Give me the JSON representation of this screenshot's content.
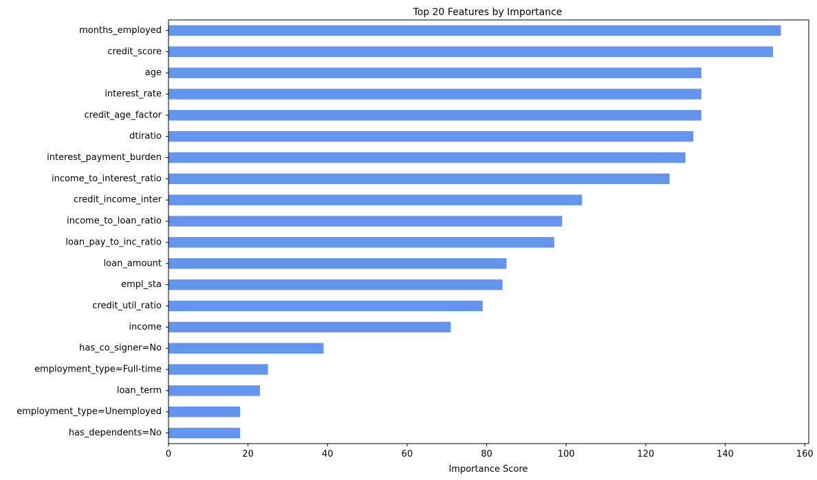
{
  "chart_data": {
    "type": "bar",
    "orientation": "horizontal",
    "title": "Top 20 Features by Importance",
    "xlabel": "Importance Score",
    "ylabel": "",
    "xlim": [
      0,
      161
    ],
    "xticks": [
      0,
      20,
      40,
      60,
      80,
      100,
      120,
      140,
      160
    ],
    "grid": false,
    "bar_color": "#6495ED",
    "categories": [
      "months_employed",
      "credit_score",
      "age",
      "interest_rate",
      "credit_age_factor",
      "dtiratio",
      "interest_payment_burden",
      "income_to_interest_ratio",
      "credit_income_inter",
      "income_to_loan_ratio",
      "loan_pay_to_inc_ratio",
      "loan_amount",
      "empl_sta",
      "credit_util_ratio",
      "income",
      "has_co_signer=No",
      "employment_type=Full-time",
      "loan_term",
      "employment_type=Unemployed",
      "has_dependents=No"
    ],
    "values": [
      154,
      152,
      134,
      134,
      134,
      132,
      130,
      126,
      104,
      99,
      97,
      85,
      84,
      79,
      71,
      39,
      25,
      23,
      18,
      18
    ]
  }
}
